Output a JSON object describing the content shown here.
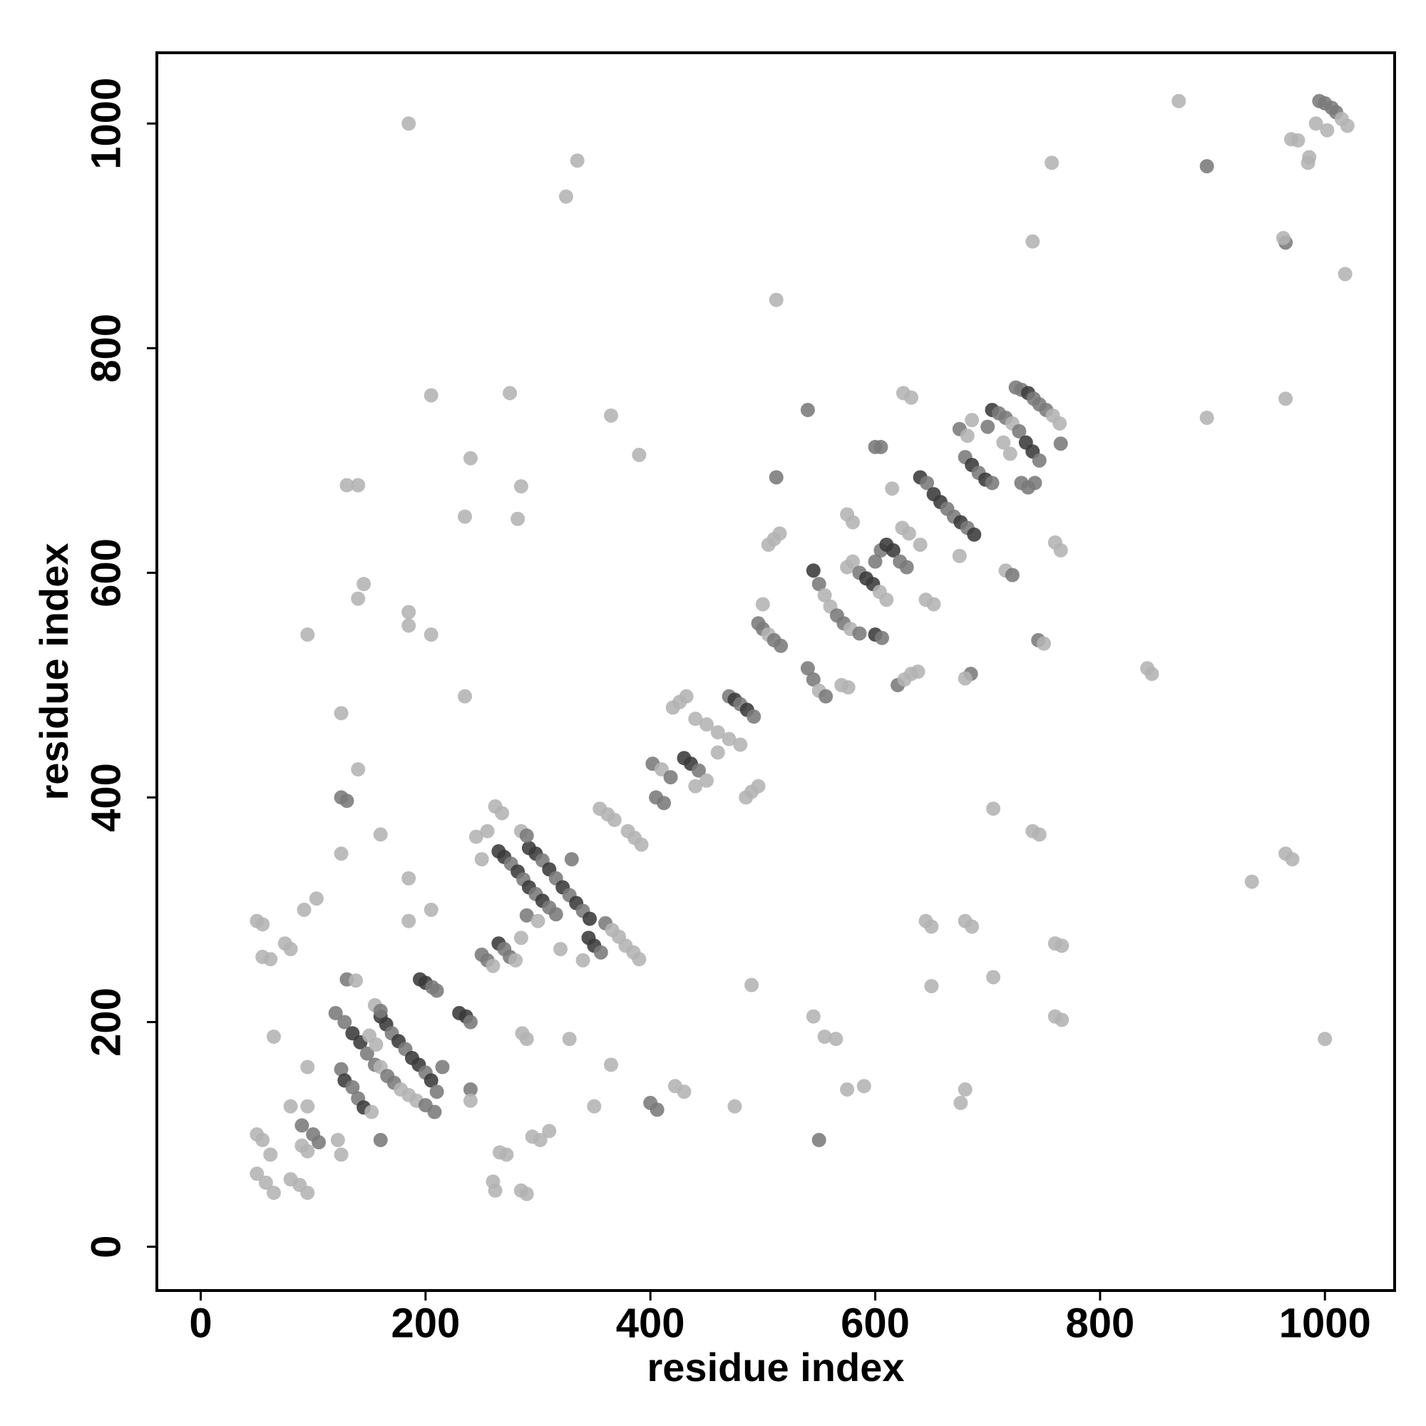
{
  "chart_data": {
    "type": "scatter",
    "xlabel": "residue index",
    "ylabel": "residue index",
    "xlim": [
      -39,
      1062
    ],
    "ylim": [
      -39,
      1063
    ],
    "xticks": [
      0,
      200,
      400,
      600,
      800,
      1000
    ],
    "yticks": [
      0,
      200,
      400,
      600,
      800,
      1000
    ],
    "grid": false,
    "x": [
      185,
      335,
      325,
      870,
      895,
      757,
      740,
      965,
      1018,
      512,
      895,
      965,
      205,
      275,
      365,
      390,
      240,
      130,
      140,
      285,
      282,
      235,
      145,
      140,
      185,
      185,
      205,
      95,
      125,
      235,
      140,
      125,
      130,
      125,
      160,
      50,
      55,
      55,
      62,
      80,
      75,
      92,
      103,
      50,
      55,
      62,
      50,
      58,
      65,
      80,
      88,
      95,
      80,
      95,
      90,
      100,
      105,
      90,
      95,
      122,
      125,
      160,
      65,
      95,
      120,
      128,
      135,
      142,
      148,
      155,
      125,
      128,
      135,
      140,
      145,
      152,
      160,
      165,
      170,
      176,
      182,
      188,
      194,
      200,
      205,
      210,
      160,
      166,
      172,
      178,
      185,
      192,
      200,
      208,
      130,
      138,
      195,
      200,
      206,
      210,
      230,
      236,
      240,
      240,
      240,
      215,
      155,
      160,
      150,
      156,
      185,
      185,
      205,
      250,
      255,
      260,
      265,
      270,
      275,
      280,
      265,
      270,
      276,
      282,
      287,
      292,
      298,
      304,
      310,
      316,
      292,
      298,
      304,
      310,
      316,
      322,
      328,
      334,
      340,
      346,
      345,
      350,
      356,
      262,
      268,
      255,
      285,
      290,
      360,
      366,
      372,
      378,
      385,
      390,
      355,
      362,
      368,
      380,
      386,
      392,
      260,
      262,
      266,
      272,
      285,
      290,
      295,
      302,
      310,
      290,
      286,
      328,
      350,
      365,
      400,
      406,
      430,
      422,
      475,
      330,
      290,
      300,
      285,
      320,
      340,
      250,
      245,
      402,
      410,
      418,
      430,
      436,
      443,
      405,
      412,
      420,
      426,
      432,
      440,
      450,
      460,
      470,
      480,
      470,
      475,
      480,
      486,
      492,
      485,
      490,
      496,
      440,
      450,
      460,
      496,
      500,
      505,
      510,
      516,
      500,
      505,
      510,
      515,
      512,
      540,
      545,
      550,
      556,
      540,
      545,
      550,
      555,
      560,
      566,
      572,
      578,
      586,
      575,
      580,
      586,
      592,
      598,
      604,
      610,
      600,
      605,
      610,
      616,
      622,
      628,
      600,
      606,
      575,
      580,
      600,
      605,
      615,
      625,
      632,
      624,
      630,
      640,
      620,
      626,
      632,
      638,
      570,
      576,
      545,
      550,
      555,
      565,
      575,
      590,
      490,
      640,
      646,
      652,
      658,
      664,
      670,
      676,
      682,
      688,
      675,
      682,
      686,
      680,
      686,
      692,
      698,
      704,
      704,
      710,
      716,
      722,
      728,
      734,
      740,
      746,
      725,
      730,
      736,
      741,
      746,
      752,
      758,
      764,
      730,
      736,
      742,
      714,
      720,
      700,
      760,
      765,
      716,
      722,
      652,
      645,
      685,
      680,
      675,
      745,
      750,
      842,
      846,
      705,
      740,
      746,
      645,
      650,
      680,
      686,
      760,
      766,
      650,
      705,
      760,
      766,
      680,
      676,
      935,
      965,
      971,
      1000,
      765,
      995,
      1000,
      1006,
      1010,
      1015,
      1020,
      970,
      976,
      986,
      1002,
      992,
      985,
      963
    ],
    "values": [
      1000,
      967,
      935,
      1020,
      962,
      965,
      895,
      894,
      866,
      843,
      738,
      755,
      758,
      760,
      740,
      705,
      702,
      678,
      678,
      677,
      648,
      650,
      590,
      577,
      565,
      553,
      545,
      545,
      475,
      490,
      425,
      400,
      397,
      350,
      367,
      290,
      287,
      258,
      256,
      265,
      270,
      300,
      310,
      100,
      95,
      82,
      65,
      57,
      48,
      60,
      55,
      48,
      125,
      125,
      108,
      100,
      93,
      90,
      85,
      95,
      82,
      95,
      187,
      160,
      208,
      200,
      190,
      182,
      172,
      162,
      158,
      148,
      142,
      132,
      124,
      120,
      205,
      198,
      190,
      183,
      176,
      168,
      162,
      155,
      148,
      138,
      160,
      152,
      146,
      140,
      135,
      130,
      126,
      120,
      238,
      237,
      238,
      235,
      231,
      228,
      208,
      205,
      200,
      140,
      130,
      160,
      215,
      210,
      188,
      180,
      290,
      328,
      300,
      260,
      255,
      250,
      270,
      265,
      258,
      255,
      352,
      347,
      341,
      334,
      327,
      320,
      314,
      308,
      302,
      296,
      355,
      350,
      344,
      336,
      328,
      320,
      313,
      306,
      299,
      292,
      275,
      268,
      262,
      392,
      386,
      370,
      370,
      366,
      288,
      282,
      276,
      268,
      262,
      256,
      390,
      385,
      380,
      370,
      364,
      358,
      58,
      50,
      84,
      82,
      50,
      47,
      98,
      95,
      103,
      185,
      190,
      185,
      125,
      162,
      128,
      122,
      138,
      143,
      125,
      345,
      295,
      290,
      275,
      265,
      255,
      345,
      365,
      430,
      425,
      418,
      435,
      430,
      424,
      400,
      395,
      480,
      485,
      490,
      470,
      465,
      458,
      452,
      447,
      490,
      487,
      483,
      478,
      472,
      400,
      405,
      410,
      410,
      415,
      440,
      555,
      550,
      545,
      540,
      535,
      572,
      625,
      630,
      635,
      685,
      515,
      505,
      495,
      490,
      745,
      602,
      590,
      580,
      570,
      562,
      555,
      550,
      546,
      605,
      610,
      600,
      595,
      590,
      583,
      576,
      610,
      620,
      625,
      620,
      610,
      605,
      545,
      542,
      652,
      645,
      712,
      712,
      675,
      760,
      756,
      640,
      635,
      625,
      500,
      505,
      510,
      512,
      500,
      498,
      205,
      95,
      187,
      185,
      140,
      143,
      233,
      685,
      680,
      670,
      663,
      657,
      650,
      645,
      640,
      634,
      728,
      722,
      736,
      703,
      696,
      689,
      683,
      680,
      745,
      742,
      738,
      733,
      726,
      716,
      708,
      700,
      765,
      763,
      760,
      755,
      750,
      745,
      740,
      733,
      680,
      676,
      680,
      716,
      706,
      730,
      627,
      620,
      602,
      598,
      572,
      576,
      510,
      506,
      615,
      540,
      537,
      515,
      510,
      390,
      370,
      367,
      290,
      285,
      290,
      285,
      270,
      268,
      232,
      240,
      205,
      202,
      140,
      128,
      325,
      350,
      345,
      185,
      715,
      1020,
      1018,
      1014,
      1010,
      1004,
      998,
      986,
      985,
      970,
      994,
      1000,
      965,
      898
    ],
    "colors": [
      "#b3b3b3",
      "#b3b3b3",
      "#b3b3b3",
      "#b3b3b3",
      "#7a7a7a",
      "#b3b3b3",
      "#b3b3b3",
      "#7a7a7a",
      "#b3b3b3",
      "#b3b3b3",
      "#b3b3b3",
      "#b3b3b3",
      "#b3b3b3",
      "#b3b3b3",
      "#b3b3b3",
      "#b3b3b3",
      "#b3b3b3",
      "#b3b3b3",
      "#b3b3b3",
      "#b3b3b3",
      "#b3b3b3",
      "#b3b3b3",
      "#b3b3b3",
      "#b3b3b3",
      "#b3b3b3",
      "#b3b3b3",
      "#b3b3b3",
      "#b3b3b3",
      "#b3b3b3",
      "#b3b3b3",
      "#b3b3b3",
      "#7a7a7a",
      "#7a7a7a",
      "#b3b3b3",
      "#b3b3b3",
      "#b3b3b3",
      "#b3b3b3",
      "#b3b3b3",
      "#b3b3b3",
      "#b3b3b3",
      "#b3b3b3",
      "#b3b3b3",
      "#b3b3b3",
      "#b3b3b3",
      "#b3b3b3",
      "#b3b3b3",
      "#b3b3b3",
      "#b3b3b3",
      "#b3b3b3",
      "#b3b3b3",
      "#b3b3b3",
      "#b3b3b3",
      "#b3b3b3",
      "#b3b3b3",
      "#7a7a7a",
      "#7a7a7a",
      "#7a7a7a",
      "#b3b3b3",
      "#b3b3b3",
      "#b3b3b3",
      "#b3b3b3",
      "#7a7a7a",
      "#b3b3b3",
      "#b3b3b3",
      "#7a7a7a",
      "#7a7a7a",
      "#3a3a3a",
      "#3a3a3a",
      "#7a7a7a",
      "#7a7a7a",
      "#7a7a7a",
      "#3a3a3a",
      "#7a7a7a",
      "#7a7a7a",
      "#3a3a3a",
      "#b3b3b3",
      "#3a3a3a",
      "#3a3a3a",
      "#7a7a7a",
      "#3a3a3a",
      "#7a7a7a",
      "#3a3a3a",
      "#3a3a3a",
      "#7a7a7a",
      "#3a3a3a",
      "#7a7a7a",
      "#b3b3b3",
      "#7a7a7a",
      "#7a7a7a",
      "#b3b3b3",
      "#b3b3b3",
      "#b3b3b3",
      "#7a7a7a",
      "#7a7a7a",
      "#7a7a7a",
      "#b3b3b3",
      "#3a3a3a",
      "#3a3a3a",
      "#7a7a7a",
      "#7a7a7a",
      "#3a3a3a",
      "#3a3a3a",
      "#7a7a7a",
      "#7a7a7a",
      "#b3b3b3",
      "#7a7a7a",
      "#b3b3b3",
      "#7a7a7a",
      "#b3b3b3",
      "#b3b3b3",
      "#b3b3b3",
      "#b3b3b3",
      "#b3b3b3",
      "#7a7a7a",
      "#7a7a7a",
      "#b3b3b3",
      "#3a3a3a",
      "#7a7a7a",
      "#7a7a7a",
      "#b3b3b3",
      "#3a3a3a",
      "#3a3a3a",
      "#7a7a7a",
      "#3a3a3a",
      "#7a7a7a",
      "#3a3a3a",
      "#7a7a7a",
      "#3a3a3a",
      "#7a7a7a",
      "#7a7a7a",
      "#3a3a3a",
      "#3a3a3a",
      "#7a7a7a",
      "#3a3a3a",
      "#7a7a7a",
      "#3a3a3a",
      "#7a7a7a",
      "#3a3a3a",
      "#7a7a7a",
      "#3a3a3a",
      "#3a3a3a",
      "#3a3a3a",
      "#7a7a7a",
      "#b3b3b3",
      "#b3b3b3",
      "#b3b3b3",
      "#b3b3b3",
      "#7a7a7a",
      "#7a7a7a",
      "#b3b3b3",
      "#b3b3b3",
      "#b3b3b3",
      "#b3b3b3",
      "#b3b3b3",
      "#b3b3b3",
      "#b3b3b3",
      "#b3b3b3",
      "#b3b3b3",
      "#b3b3b3",
      "#b3b3b3",
      "#b3b3b3",
      "#b3b3b3",
      "#b3b3b3",
      "#b3b3b3",
      "#b3b3b3",
      "#b3b3b3",
      "#b3b3b3",
      "#b3b3b3",
      "#b3b3b3",
      "#b3b3b3",
      "#b3b3b3",
      "#b3b3b3",
      "#b3b3b3",
      "#b3b3b3",
      "#7a7a7a",
      "#7a7a7a",
      "#b3b3b3",
      "#b3b3b3",
      "#b3b3b3",
      "#7a7a7a",
      "#7a7a7a",
      "#b3b3b3",
      "#b3b3b3",
      "#b3b3b3",
      "#b3b3b3",
      "#b3b3b3",
      "#b3b3b3",
      "#7a7a7a",
      "#b3b3b3",
      "#7a7a7a",
      "#3a3a3a",
      "#3a3a3a",
      "#7a7a7a",
      "#7a7a7a",
      "#7a7a7a",
      "#b3b3b3",
      "#b3b3b3",
      "#b3b3b3",
      "#b3b3b3",
      "#b3b3b3",
      "#b3b3b3",
      "#b3b3b3",
      "#b3b3b3",
      "#7a7a7a",
      "#3a3a3a",
      "#7a7a7a",
      "#3a3a3a",
      "#7a7a7a",
      "#b3b3b3",
      "#b3b3b3",
      "#b3b3b3",
      "#b3b3b3",
      "#b3b3b3",
      "#b3b3b3",
      "#7a7a7a",
      "#7a7a7a",
      "#b3b3b3",
      "#7a7a7a",
      "#7a7a7a",
      "#b3b3b3",
      "#b3b3b3",
      "#b3b3b3",
      "#b3b3b3",
      "#7a7a7a",
      "#7a7a7a",
      "#7a7a7a",
      "#b3b3b3",
      "#7a7a7a",
      "#7a7a7a",
      "#3a3a3a",
      "#7a7a7a",
      "#b3b3b3",
      "#b3b3b3",
      "#7a7a7a",
      "#7a7a7a",
      "#b3b3b3",
      "#7a7a7a",
      "#b3b3b3",
      "#b3b3b3",
      "#7a7a7a",
      "#3a3a3a",
      "#3a3a3a",
      "#b3b3b3",
      "#b3b3b3",
      "#7a7a7a",
      "#7a7a7a",
      "#3a3a3a",
      "#3a3a3a",
      "#7a7a7a",
      "#7a7a7a",
      "#3a3a3a",
      "#7a7a7a",
      "#b3b3b3",
      "#b3b3b3",
      "#7a7a7a",
      "#7a7a7a",
      "#b3b3b3",
      "#b3b3b3",
      "#b3b3b3",
      "#b3b3b3",
      "#b3b3b3",
      "#b3b3b3",
      "#7a7a7a",
      "#b3b3b3",
      "#b3b3b3",
      "#b3b3b3",
      "#b3b3b3",
      "#b3b3b3",
      "#b3b3b3",
      "#7a7a7a",
      "#b3b3b3",
      "#b3b3b3",
      "#b3b3b3",
      "#b3b3b3",
      "#b3b3b3",
      "#3a3a3a",
      "#7a7a7a",
      "#3a3a3a",
      "#3a3a3a",
      "#7a7a7a",
      "#7a7a7a",
      "#3a3a3a",
      "#7a7a7a",
      "#3a3a3a",
      "#7a7a7a",
      "#b3b3b3",
      "#b3b3b3",
      "#7a7a7a",
      "#3a3a3a",
      "#7a7a7a",
      "#3a3a3a",
      "#7a7a7a",
      "#3a3a3a",
      "#7a7a7a",
      "#7a7a7a",
      "#b3b3b3",
      "#7a7a7a",
      "#3a3a3a",
      "#3a3a3a",
      "#7a7a7a",
      "#7a7a7a",
      "#7a7a7a",
      "#3a3a3a",
      "#7a7a7a",
      "#7a7a7a",
      "#7a7a7a",
      "#b3b3b3",
      "#b3b3b3",
      "#7a7a7a",
      "#7a7a7a",
      "#7a7a7a",
      "#b3b3b3",
      "#b3b3b3",
      "#7a7a7a",
      "#b3b3b3",
      "#b3b3b3",
      "#b3b3b3",
      "#7a7a7a",
      "#b3b3b3",
      "#b3b3b3",
      "#7a7a7a",
      "#b3b3b3",
      "#b3b3b3",
      "#7a7a7a",
      "#b3b3b3",
      "#b3b3b3",
      "#b3b3b3",
      "#b3b3b3",
      "#b3b3b3",
      "#b3b3b3",
      "#b3b3b3",
      "#b3b3b3",
      "#b3b3b3",
      "#b3b3b3",
      "#b3b3b3",
      "#b3b3b3",
      "#b3b3b3",
      "#b3b3b3",
      "#b3b3b3",
      "#b3b3b3",
      "#b3b3b3",
      "#b3b3b3",
      "#b3b3b3",
      "#b3b3b3",
      "#b3b3b3",
      "#b3b3b3",
      "#7a7a7a",
      "#7a7a7a",
      "#7a7a7a",
      "#7a7a7a",
      "#7a7a7a",
      "#b3b3b3",
      "#b3b3b3",
      "#b3b3b3",
      "#b3b3b3",
      "#b3b3b3",
      "#b3b3b3",
      "#b3b3b3",
      "#b3b3b3",
      "#b3b3b3"
    ]
  }
}
